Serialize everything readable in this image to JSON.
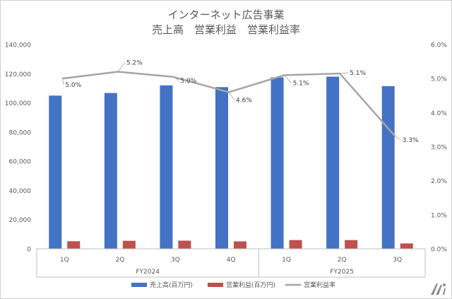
{
  "chart_data": {
    "type": "bar+line",
    "title_lines": [
      "インターネット広告事業",
      "売上高　営業利益　営業利益率"
    ],
    "categories": [
      "1Q",
      "2Q",
      "3Q",
      "4Q",
      "1Q",
      "2Q",
      "3Q"
    ],
    "groups": [
      {
        "label": "FY2024",
        "count": 4
      },
      {
        "label": "FY2025",
        "count": 3
      }
    ],
    "left_axis": {
      "min": 0,
      "max": 140000,
      "step": 20000,
      "tick_labels": [
        "0",
        "20,000",
        "40,000",
        "60,000",
        "80,000",
        "100,000",
        "120,000",
        "140,000"
      ]
    },
    "right_axis": {
      "min": 0,
      "max": 6.0,
      "step": 1.0,
      "tick_labels": [
        "0.0%",
        "1.0%",
        "2.0%",
        "3.0%",
        "4.0%",
        "5.0%",
        "6.0%"
      ]
    },
    "series": [
      {
        "name": "売上高(百万円)",
        "kind": "bar",
        "axis": "left",
        "color": "#4472c4",
        "values": [
          105000,
          106800,
          112000,
          110800,
          117500,
          118000,
          111500
        ]
      },
      {
        "name": "営業利益(百万円)",
        "kind": "bar",
        "axis": "left",
        "color": "#c0504d",
        "values": [
          5200,
          5500,
          5600,
          5100,
          6000,
          6000,
          3700
        ]
      },
      {
        "name": "営業利益率",
        "kind": "line",
        "axis": "right",
        "color": "#a5a5a5",
        "values": [
          5.0,
          5.2,
          5.05,
          4.6,
          5.1,
          5.15,
          3.3
        ],
        "labels": [
          "5.0%",
          "5.2%",
          "5.0%",
          "4.6%",
          "5.1%",
          "5.1%",
          "3.3%"
        ]
      }
    ],
    "legend_position": "bottom",
    "grid": false
  }
}
